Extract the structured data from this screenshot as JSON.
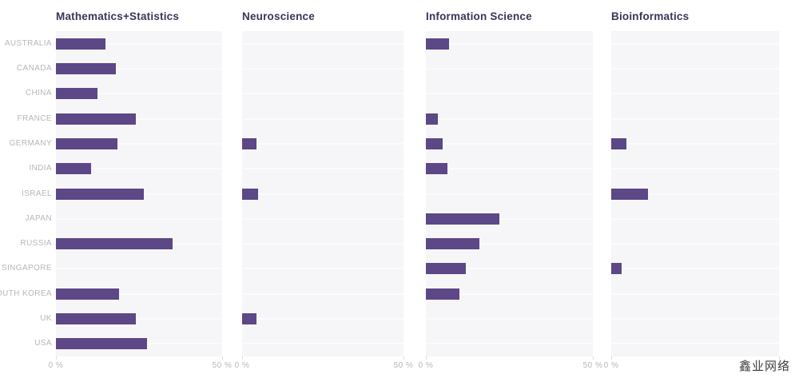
{
  "page": {
    "watermark": "鑫业网络"
  },
  "axis": {
    "min_label": "0 %",
    "max_label": "50 %"
  },
  "colors": {
    "bar": "#5c4787",
    "title": "#3e3359",
    "label": "#b8b5bb",
    "plot_bg": "#f6f5f7",
    "grid": "#fbfbfc"
  },
  "chart_data": {
    "type": "bar",
    "orientation": "horizontal",
    "title": "",
    "xlabel": "",
    "ylabel": "",
    "xlim": [
      0,
      50
    ],
    "x_tick_labels": [
      "0 %",
      "50 %"
    ],
    "x_unit": "percent",
    "grid": "white horizontal gridlines at category centers, no vertical axis lines",
    "legend": "none",
    "categories": [
      "AUSTRALIA",
      "CANADA",
      "CHINA",
      "FRANCE",
      "GERMANY",
      "INDIA",
      "ISRAEL",
      "JAPAN",
      "RUSSIA",
      "SINGAPORE",
      "SOUTH KOREA",
      "UK",
      "USA"
    ],
    "facets": [
      {
        "title": "Mathematics+Statistics",
        "values": [
          15,
          18,
          12.5,
          24,
          18.5,
          10.5,
          26.5,
          0,
          35,
          0,
          19,
          24,
          27.5
        ]
      },
      {
        "title": "Neuroscience",
        "values": [
          0,
          0,
          0,
          0,
          4.5,
          0,
          5,
          0,
          0,
          0,
          0,
          4.5,
          0
        ]
      },
      {
        "title": "Information Science",
        "values": [
          7,
          0,
          0,
          3.5,
          5,
          6.5,
          0,
          22,
          16,
          12,
          10,
          0,
          0
        ]
      },
      {
        "title": "Bioinformatics",
        "values": [
          0,
          0,
          0,
          0,
          4.5,
          0,
          11,
          0,
          0,
          3,
          0,
          0,
          0
        ]
      }
    ],
    "notes": "zero values render as no bar; last facet's 50% tick label hidden by watermark",
    "last_panel_max_label_hidden": true
  }
}
